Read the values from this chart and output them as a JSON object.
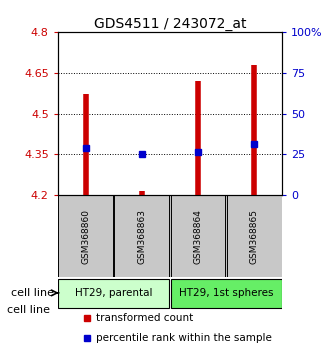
{
  "title": "GDS4511 / 243072_at",
  "samples": [
    "GSM368860",
    "GSM368863",
    "GSM368864",
    "GSM368865"
  ],
  "red_values": [
    4.57,
    4.215,
    4.62,
    4.68
  ],
  "blue_values": [
    4.375,
    4.352,
    4.36,
    4.39
  ],
  "y_min": 4.2,
  "y_max": 4.8,
  "y_ticks": [
    4.2,
    4.35,
    4.5,
    4.65,
    4.8
  ],
  "right_ticks": [
    0,
    25,
    50,
    75,
    100
  ],
  "right_tick_labels": [
    "0",
    "25",
    "50",
    "75",
    "100%"
  ],
  "groups": [
    {
      "label": "HT29, parental",
      "indices": [
        0,
        1
      ],
      "color": "#ccffcc"
    },
    {
      "label": "HT29, 1st spheres",
      "indices": [
        2,
        3
      ],
      "color": "#66ee66"
    }
  ],
  "bar_color": "#cc0000",
  "blue_color": "#0000cc",
  "bar_bottom": 4.2,
  "background_color": "#ffffff",
  "label_color_red": "#cc0000",
  "label_color_blue": "#0000cc",
  "legend_red_label": "transformed count",
  "legend_blue_label": "percentile rank within the sample",
  "cell_line_label": "cell line",
  "sample_box_color": "#c8c8c8"
}
